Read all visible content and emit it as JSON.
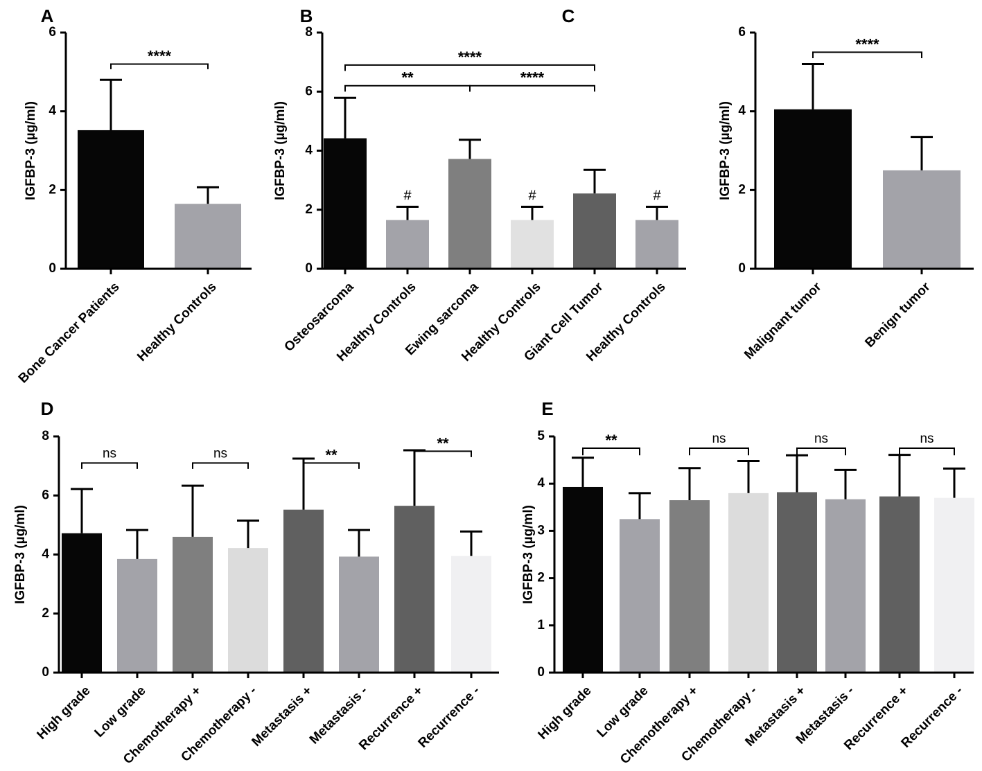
{
  "chart_data": [
    {
      "panel": "A",
      "type": "bar",
      "ylabel": "IGFBP-3 (µg/ml)",
      "ylim": [
        0,
        6
      ],
      "yticks": [
        0,
        2,
        4,
        6
      ],
      "categories": [
        "Bone Cancer Patients",
        "Healthy Controls"
      ],
      "values": [
        3.52,
        1.65
      ],
      "errors": [
        1.28,
        0.42
      ],
      "colors": [
        "#060606",
        "#a3a3a9"
      ],
      "marks": [
        "",
        ""
      ],
      "comparisons": [
        {
          "from": 0,
          "to": 1,
          "label": "****",
          "y": 5.2,
          "drop": 0.13
        }
      ]
    },
    {
      "panel": "B",
      "type": "bar",
      "ylabel": "IGFBP-3 (µg/ml)",
      "ylim": [
        0,
        8
      ],
      "yticks": [
        0,
        2,
        4,
        6,
        8
      ],
      "categories": [
        "Osteosarcoma",
        "Healthy Controls",
        "Ewing sarcoma",
        "Healthy Controls",
        "Giant Cell Tumor",
        "Healthy Controls"
      ],
      "values": [
        4.42,
        1.65,
        3.72,
        1.65,
        2.55,
        1.65
      ],
      "errors": [
        1.37,
        0.45,
        0.65,
        0.45,
        0.8,
        0.45
      ],
      "colors": [
        "#060606",
        "#a3a3a9",
        "#7f7f7f",
        "#e1e1e1",
        "#606060",
        "#a3a3a9"
      ],
      "marks": [
        "",
        "#",
        "",
        "#",
        "",
        "#"
      ],
      "comparisons": [
        {
          "from": 0,
          "to": 2,
          "label": "**",
          "y": 6.2,
          "drop": 0.2
        },
        {
          "from": 2,
          "to": 4,
          "label": "****",
          "y": 6.2,
          "drop": 0.2
        },
        {
          "from": 0,
          "to": 4,
          "label": "****",
          "y": 6.9,
          "drop": 0.2
        }
      ]
    },
    {
      "panel": "C",
      "type": "bar",
      "ylabel": "IGFBP-3 (µg/ml)",
      "ylim": [
        0,
        6
      ],
      "yticks": [
        0,
        2,
        4,
        6
      ],
      "categories": [
        "Malignant tumor",
        "Benign tumor"
      ],
      "values": [
        4.05,
        2.5
      ],
      "errors": [
        1.15,
        0.85
      ],
      "colors": [
        "#060606",
        "#a3a3a9"
      ],
      "marks": [
        "",
        ""
      ],
      "comparisons": [
        {
          "from": 0,
          "to": 1,
          "label": "****",
          "y": 5.5,
          "drop": 0.15
        }
      ]
    },
    {
      "panel": "D",
      "type": "bar",
      "ylabel": "IGFBP-3 (µg/ml)",
      "ylim": [
        0,
        8
      ],
      "yticks": [
        0,
        2,
        4,
        6,
        8
      ],
      "categories": [
        "High grade",
        "Low grade",
        "Chemotherapy +",
        "Chemotherapy -",
        "Metastasis +",
        "Metastasis -",
        "Recurrence +",
        "Recurrence -"
      ],
      "values": [
        4.72,
        3.85,
        4.6,
        4.22,
        5.52,
        3.93,
        5.65,
        3.95
      ],
      "errors": [
        1.5,
        0.98,
        1.73,
        0.93,
        1.73,
        0.9,
        1.88,
        0.83
      ],
      "colors": [
        "#060606",
        "#a3a3a9",
        "#7f7f7f",
        "#dcdcdc",
        "#606060",
        "#a3a3a9",
        "#606060",
        "#f0f0f2"
      ],
      "marks": [
        "",
        "",
        "",
        "",
        "",
        "",
        "",
        ""
      ],
      "comparisons": [
        {
          "from": 0,
          "to": 1,
          "label": "ns",
          "y": 7.1,
          "drop": 0.2
        },
        {
          "from": 2,
          "to": 3,
          "label": "ns",
          "y": 7.1,
          "drop": 0.2
        },
        {
          "from": 4,
          "to": 5,
          "label": "**",
          "y": 7.1,
          "drop": 0.2
        },
        {
          "from": 6,
          "to": 7,
          "label": "**",
          "y": 7.5,
          "drop": 0.2
        }
      ]
    },
    {
      "panel": "E",
      "type": "bar",
      "ylabel": "IGFBP-3 (µg/ml)",
      "ylim": [
        0,
        5
      ],
      "yticks": [
        0,
        1,
        2,
        3,
        4,
        5
      ],
      "categories": [
        "High grade",
        "Low grade",
        "Chemotherapy +",
        "Chemotherapy -",
        "Metastasis +",
        "Metastasis -",
        "Recurrence +",
        "Recurrence -"
      ],
      "values": [
        3.93,
        3.25,
        3.65,
        3.8,
        3.82,
        3.67,
        3.73,
        3.7
      ],
      "errors": [
        0.62,
        0.55,
        0.68,
        0.68,
        0.78,
        0.62,
        0.88,
        0.62
      ],
      "colors": [
        "#060606",
        "#a3a3a9",
        "#7f7f7f",
        "#dcdcdc",
        "#606060",
        "#a3a3a9",
        "#606060",
        "#f0f0f2"
      ],
      "marks": [
        "",
        "",
        "",
        "",
        "",
        "",
        "",
        ""
      ],
      "comparisons": [
        {
          "from": 0,
          "to": 1,
          "label": "**",
          "y": 4.75,
          "drop": 0.15
        },
        {
          "from": 2,
          "to": 3,
          "label": "ns",
          "y": 4.75,
          "drop": 0.15
        },
        {
          "from": 4,
          "to": 5,
          "label": "ns",
          "y": 4.75,
          "drop": 0.15
        },
        {
          "from": 6,
          "to": 7,
          "label": "ns",
          "y": 4.75,
          "drop": 0.15
        }
      ]
    }
  ]
}
